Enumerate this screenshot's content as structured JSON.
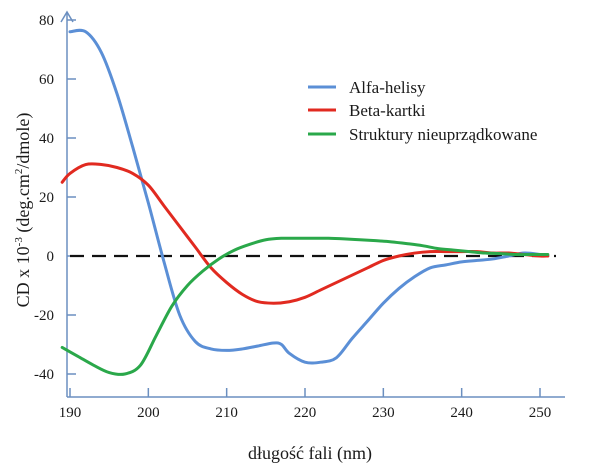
{
  "chart_data": {
    "type": "line",
    "xlabel": "długość fali (nm)",
    "ylabel_base": "CD x 10",
    "ylabel_exp": "-3",
    "ylabel_unit": " (deg.cm",
    "ylabel_unit_exp": "2",
    "ylabel_tail": "/dmole)",
    "xlim": [
      189,
      252
    ],
    "ylim": [
      -42,
      82
    ],
    "x_ticks": [
      190,
      200,
      210,
      220,
      230,
      240,
      250
    ],
    "y_ticks": [
      80,
      60,
      40,
      20,
      0,
      -20,
      -40
    ],
    "x_tick_labels": [
      "190",
      "200",
      "210",
      "220",
      "230",
      "240",
      "250"
    ],
    "y_tick_labels": [
      "80",
      "60",
      "40",
      "20",
      "0",
      "-20",
      "-40"
    ],
    "reference_line": {
      "y": 0,
      "style": "dashed",
      "color": "#111111"
    },
    "legend_position": "top-right",
    "series": [
      {
        "name": "Alfa-helisy",
        "color": "#5b8fd6",
        "x": [
          190,
          192,
          194,
          196,
          198,
          200,
          202,
          204,
          206,
          208,
          210,
          212,
          214,
          216,
          217,
          218,
          220,
          222,
          224,
          226,
          228,
          230,
          232,
          234,
          236,
          238,
          240,
          242,
          244,
          246,
          248,
          250,
          251
        ],
        "y": [
          76,
          76,
          69,
          55,
          37,
          18,
          -2,
          -20,
          -29,
          -31.5,
          -32,
          -31.5,
          -30.5,
          -29.5,
          -30,
          -33,
          -36,
          -36,
          -34.5,
          -28,
          -22,
          -16,
          -11,
          -7,
          -4,
          -3,
          -2,
          -1.5,
          -1,
          0,
          1,
          0.5,
          0
        ]
      },
      {
        "name": "Beta-kartki",
        "color": "#e12a20",
        "x": [
          189,
          190,
          192,
          194,
          196,
          198,
          200,
          202,
          204,
          206,
          208,
          210,
          212,
          214,
          216,
          218,
          220,
          222,
          224,
          226,
          228,
          230,
          232,
          234,
          236,
          238,
          240,
          242,
          244,
          246,
          248,
          250,
          251
        ],
        "y": [
          25,
          28,
          31,
          31,
          30,
          28,
          24,
          17,
          10,
          3,
          -4,
          -9,
          -13,
          -15.5,
          -16,
          -15.5,
          -14,
          -11.5,
          -9,
          -6.5,
          -4,
          -1.5,
          0,
          1,
          1.5,
          1.5,
          1.5,
          1.5,
          1,
          1,
          0.5,
          0,
          0
        ]
      },
      {
        "name": "Struktury nieuprządkowane",
        "color": "#2aa84a",
        "x": [
          189,
          191,
          193,
          195,
          197,
          199,
          201,
          203,
          205,
          207,
          209,
          211,
          213,
          215,
          217,
          219,
          221,
          223,
          225,
          227,
          229,
          231,
          233,
          235,
          237,
          239,
          241,
          243,
          245,
          247,
          249,
          251
        ],
        "y": [
          -31,
          -34,
          -37,
          -39.5,
          -40,
          -37,
          -27,
          -17,
          -10,
          -5,
          -1,
          2,
          4,
          5.5,
          6,
          6,
          6,
          6,
          5.8,
          5.5,
          5.2,
          4.8,
          4.2,
          3.5,
          2.5,
          2,
          1.5,
          1,
          0.8,
          0.5,
          0.5,
          0.5
        ]
      }
    ]
  }
}
